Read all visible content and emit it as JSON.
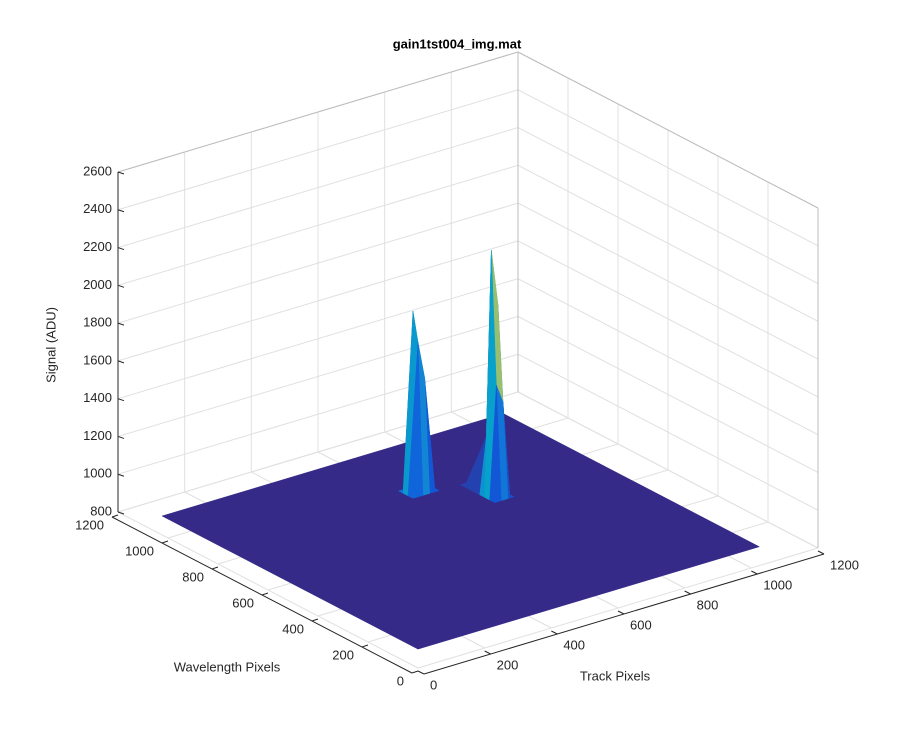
{
  "chart_data": {
    "type": "surface",
    "title": "gain1tst004_img.mat",
    "xlabel": "Track Pixels",
    "ylabel": "Wavelength Pixels",
    "zlabel": "Signal (ADU)",
    "x": [
      0,
      540,
      570,
      590,
      620,
      680,
      700,
      720,
      740,
      1024
    ],
    "y": [
      0,
      600,
      620,
      640,
      660,
      740,
      760,
      780,
      800,
      1024
    ],
    "z": [
      [
        900,
        900,
        900,
        900,
        900,
        900,
        900,
        900,
        900,
        900
      ],
      [
        900,
        900,
        900,
        900,
        900,
        900,
        900,
        900,
        900,
        900
      ],
      [
        900,
        900,
        900,
        900,
        900,
        900,
        1500,
        1400,
        900,
        900
      ],
      [
        900,
        900,
        900,
        900,
        900,
        900,
        2200,
        1900,
        900,
        900
      ],
      [
        900,
        900,
        900,
        900,
        900,
        900,
        1200,
        1100,
        900,
        900
      ],
      [
        900,
        900,
        900,
        900,
        900,
        900,
        900,
        900,
        900,
        900
      ],
      [
        900,
        900,
        1700,
        1500,
        900,
        900,
        900,
        900,
        900,
        900
      ],
      [
        900,
        900,
        1850,
        1600,
        900,
        900,
        900,
        900,
        900,
        900
      ],
      [
        900,
        900,
        900,
        900,
        900,
        900,
        900,
        900,
        900,
        900
      ],
      [
        900,
        900,
        900,
        900,
        900,
        900,
        900,
        900,
        900,
        900
      ]
    ],
    "xlim": [
      0,
      1200
    ],
    "ylim": [
      0,
      1200
    ],
    "zlim": [
      800,
      2600
    ],
    "xticks": [
      0,
      200,
      400,
      600,
      800,
      1000,
      1200
    ],
    "yticks": [
      0,
      200,
      400,
      600,
      800,
      1000,
      1200
    ],
    "zticks": [
      800,
      1000,
      1200,
      1400,
      1600,
      1800,
      2000,
      2200,
      2400,
      2600
    ],
    "grid": true,
    "colormap": [
      "#352a87",
      "#0f5cdd",
      "#1481d6",
      "#06a4ca",
      "#2eb7a4",
      "#87bf77",
      "#d1bb59",
      "#fec832",
      "#f9fb0e"
    ]
  }
}
